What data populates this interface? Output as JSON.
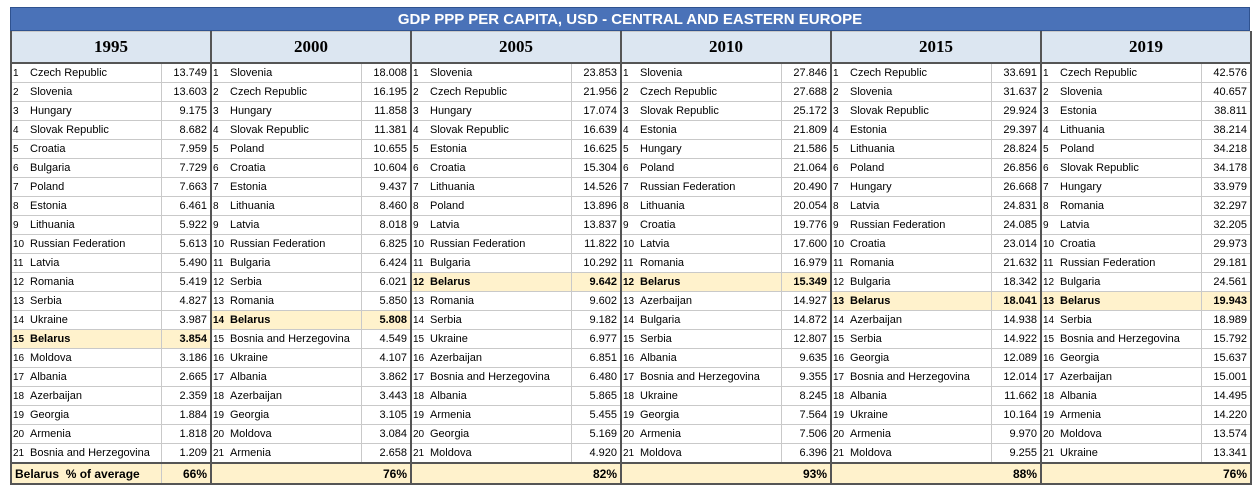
{
  "header": {
    "title": "GDP PPP PER CAPITA, USD  - CENTRAL AND EASTERN EUROPE"
  },
  "table": {
    "columns": [
      {
        "year": "1995",
        "highlight": 14,
        "footer": "66%",
        "rows": [
          [
            1,
            "Czech Republic",
            "13.749"
          ],
          [
            2,
            "Slovenia",
            "13.603"
          ],
          [
            3,
            "Hungary",
            "9.175"
          ],
          [
            4,
            "Slovak Republic",
            "8.682"
          ],
          [
            5,
            "Croatia",
            "7.959"
          ],
          [
            6,
            "Bulgaria",
            "7.729"
          ],
          [
            7,
            "Poland",
            "7.663"
          ],
          [
            8,
            "Estonia",
            "6.461"
          ],
          [
            9,
            "Lithuania",
            "5.922"
          ],
          [
            10,
            "Russian Federation",
            "5.613"
          ],
          [
            11,
            "Latvia",
            "5.490"
          ],
          [
            12,
            "Romania",
            "5.419"
          ],
          [
            13,
            "Serbia",
            "4.827"
          ],
          [
            14,
            "Ukraine",
            "3.987"
          ],
          [
            15,
            "Belarus",
            "3.854"
          ],
          [
            16,
            "Moldova",
            "3.186"
          ],
          [
            17,
            "Albania",
            "2.665"
          ],
          [
            18,
            "Azerbaijan",
            "2.359"
          ],
          [
            19,
            "Georgia",
            "1.884"
          ],
          [
            20,
            "Armenia",
            "1.818"
          ],
          [
            21,
            "Bosnia and Herzegovina",
            "1.209"
          ]
        ]
      },
      {
        "year": "2000",
        "highlight": 13,
        "footer": "76%",
        "rows": [
          [
            1,
            "Slovenia",
            "18.008"
          ],
          [
            2,
            "Czech Republic",
            "16.195"
          ],
          [
            3,
            "Hungary",
            "11.858"
          ],
          [
            4,
            "Slovak Republic",
            "11.381"
          ],
          [
            5,
            "Poland",
            "10.655"
          ],
          [
            6,
            "Croatia",
            "10.604"
          ],
          [
            7,
            "Estonia",
            "9.437"
          ],
          [
            8,
            "Lithuania",
            "8.460"
          ],
          [
            9,
            "Latvia",
            "8.018"
          ],
          [
            10,
            "Russian Federation",
            "6.825"
          ],
          [
            11,
            "Bulgaria",
            "6.424"
          ],
          [
            12,
            "Serbia",
            "6.021"
          ],
          [
            13,
            "Romania",
            "5.850"
          ],
          [
            14,
            "Belarus",
            "5.808"
          ],
          [
            15,
            "Bosnia and Herzegovina",
            "4.549"
          ],
          [
            16,
            "Ukraine",
            "4.107"
          ],
          [
            17,
            "Albania",
            "3.862"
          ],
          [
            18,
            "Azerbaijan",
            "3.443"
          ],
          [
            19,
            "Georgia",
            "3.105"
          ],
          [
            20,
            "Moldova",
            "3.084"
          ],
          [
            21,
            "Armenia",
            "2.658"
          ]
        ]
      },
      {
        "year": "2005",
        "highlight": 11,
        "footer": "82%",
        "rows": [
          [
            1,
            "Slovenia",
            "23.853"
          ],
          [
            2,
            "Czech Republic",
            "21.956"
          ],
          [
            3,
            "Hungary",
            "17.074"
          ],
          [
            4,
            "Slovak Republic",
            "16.639"
          ],
          [
            5,
            "Estonia",
            "16.625"
          ],
          [
            6,
            "Croatia",
            "15.304"
          ],
          [
            7,
            "Lithuania",
            "14.526"
          ],
          [
            8,
            "Poland",
            "13.896"
          ],
          [
            9,
            "Latvia",
            "13.837"
          ],
          [
            10,
            "Russian Federation",
            "11.822"
          ],
          [
            11,
            "Bulgaria",
            "10.292"
          ],
          [
            12,
            "Belarus",
            "9.642"
          ],
          [
            13,
            "Romania",
            "9.602"
          ],
          [
            14,
            "Serbia",
            "9.182"
          ],
          [
            15,
            "Ukraine",
            "6.977"
          ],
          [
            16,
            "Azerbaijan",
            "6.851"
          ],
          [
            17,
            "Bosnia and Herzegovina",
            "6.480"
          ],
          [
            18,
            "Albania",
            "5.865"
          ],
          [
            19,
            "Armenia",
            "5.455"
          ],
          [
            20,
            "Georgia",
            "5.169"
          ],
          [
            21,
            "Moldova",
            "4.920"
          ]
        ]
      },
      {
        "year": "2010",
        "highlight": 11,
        "footer": "93%",
        "rows": [
          [
            1,
            "Slovenia",
            "27.846"
          ],
          [
            2,
            "Czech Republic",
            "27.688"
          ],
          [
            3,
            "Slovak Republic",
            "25.172"
          ],
          [
            4,
            "Estonia",
            "21.809"
          ],
          [
            5,
            "Hungary",
            "21.586"
          ],
          [
            6,
            "Poland",
            "21.064"
          ],
          [
            7,
            "Russian Federation",
            "20.490"
          ],
          [
            8,
            "Lithuania",
            "20.054"
          ],
          [
            9,
            "Croatia",
            "19.776"
          ],
          [
            10,
            "Latvia",
            "17.600"
          ],
          [
            11,
            "Romania",
            "16.979"
          ],
          [
            12,
            "Belarus",
            "15.349"
          ],
          [
            13,
            "Azerbaijan",
            "14.927"
          ],
          [
            14,
            "Bulgaria",
            "14.872"
          ],
          [
            15,
            "Serbia",
            "12.807"
          ],
          [
            16,
            "Albania",
            "9.635"
          ],
          [
            17,
            "Bosnia and Herzegovina",
            "9.355"
          ],
          [
            18,
            "Ukraine",
            "8.245"
          ],
          [
            19,
            "Georgia",
            "7.564"
          ],
          [
            20,
            "Armenia",
            "7.506"
          ],
          [
            21,
            "Moldova",
            "6.396"
          ]
        ]
      },
      {
        "year": "2015",
        "highlight": 12,
        "footer": "88%",
        "rows": [
          [
            1,
            "Czech Republic",
            "33.691"
          ],
          [
            2,
            "Slovenia",
            "31.637"
          ],
          [
            3,
            "Slovak Republic",
            "29.924"
          ],
          [
            4,
            "Estonia",
            "29.397"
          ],
          [
            5,
            "Lithuania",
            "28.824"
          ],
          [
            6,
            "Poland",
            "26.856"
          ],
          [
            7,
            "Hungary",
            "26.668"
          ],
          [
            8,
            "Latvia",
            "24.831"
          ],
          [
            9,
            "Russian Federation",
            "24.085"
          ],
          [
            10,
            "Croatia",
            "23.014"
          ],
          [
            11,
            "Romania",
            "21.632"
          ],
          [
            12,
            "Bulgaria",
            "18.342"
          ],
          [
            13,
            "Belarus",
            "18.041"
          ],
          [
            14,
            "Azerbaijan",
            "14.938"
          ],
          [
            15,
            "Serbia",
            "14.922"
          ],
          [
            16,
            "Georgia",
            "12.089"
          ],
          [
            17,
            "Bosnia and Herzegovina",
            "12.014"
          ],
          [
            18,
            "Albania",
            "11.662"
          ],
          [
            19,
            "Ukraine",
            "10.164"
          ],
          [
            20,
            "Armenia",
            "9.970"
          ],
          [
            21,
            "Moldova",
            "9.255"
          ]
        ]
      },
      {
        "year": "2019",
        "highlight": 12,
        "footer": "76%",
        "rows": [
          [
            1,
            "Czech Republic",
            "42.576"
          ],
          [
            2,
            "Slovenia",
            "40.657"
          ],
          [
            3,
            "Estonia",
            "38.811"
          ],
          [
            4,
            "Lithuania",
            "38.214"
          ],
          [
            5,
            "Poland",
            "34.218"
          ],
          [
            6,
            "Slovak Republic",
            "34.178"
          ],
          [
            7,
            "Hungary",
            "33.979"
          ],
          [
            8,
            "Romania",
            "32.297"
          ],
          [
            9,
            "Latvia",
            "32.205"
          ],
          [
            10,
            "Croatia",
            "29.973"
          ],
          [
            11,
            "Russian Federation",
            "29.181"
          ],
          [
            12,
            "Bulgaria",
            "24.561"
          ],
          [
            13,
            "Belarus",
            "19.943"
          ],
          [
            14,
            "Serbia",
            "18.989"
          ],
          [
            15,
            "Bosnia and Herzegovina",
            "15.792"
          ],
          [
            16,
            "Georgia",
            "15.637"
          ],
          [
            17,
            "Azerbaijan",
            "15.001"
          ],
          [
            18,
            "Albania",
            "14.495"
          ],
          [
            19,
            "Armenia",
            "14.220"
          ],
          [
            20,
            "Moldova",
            "13.574"
          ],
          [
            21,
            "Ukraine",
            "13.341"
          ]
        ]
      }
    ],
    "footer_label": "Belarus  % of average"
  }
}
